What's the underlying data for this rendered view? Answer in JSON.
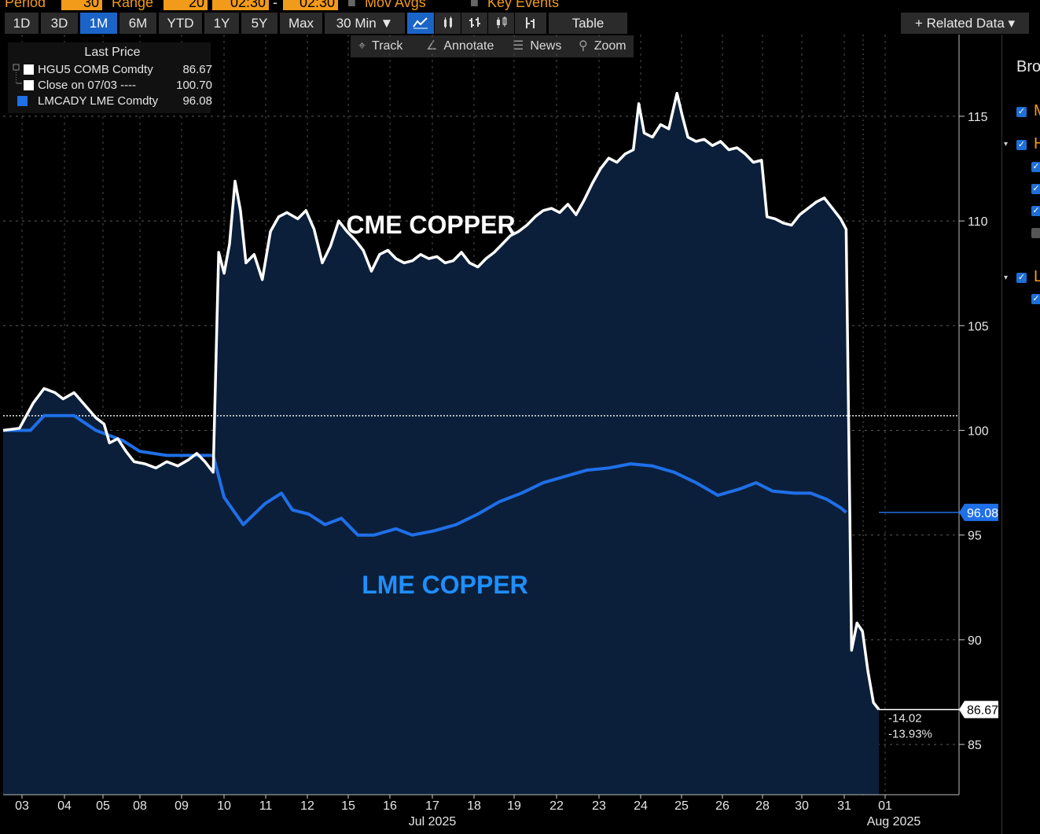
{
  "top_bar": {
    "period_label": "Period",
    "period_value": "30",
    "range_label": "Range",
    "range_value": "20",
    "start_time": "02:30",
    "separator": "-",
    "end_time": "02:30",
    "mov_avgs_label": "Mov Avgs",
    "key_events_label": "Key Events"
  },
  "toolbar": {
    "periods": [
      "1D",
      "3D",
      "1M",
      "6M",
      "YTD",
      "1Y",
      "5Y",
      "Max"
    ],
    "active_period": "1M",
    "interval_label": "30 Min ▼",
    "table_label": "Table",
    "related_data_label": "+ Related Data ▾",
    "chart_type_icons": [
      "line-chart-icon",
      "bar-chart-icon",
      "ohlc-icon",
      "candlestick-icon",
      "hlc-icon"
    ]
  },
  "sub_toolbar": {
    "track_label": "Track",
    "annotate_label": "Annotate",
    "news_label": "News",
    "zoom_label": "Zoom"
  },
  "legend": {
    "header": "Last Price",
    "rows": [
      {
        "name": "HGU5 COMB Comdty",
        "value": "86.67",
        "color": "#ffffff"
      },
      {
        "name": "Close on 07/03 ----",
        "value": "100.70",
        "color": "#ffffff"
      },
      {
        "name": "LMCADY LME Comdty",
        "value": "96.08",
        "color": "#1f6fe8"
      }
    ]
  },
  "side_panel": {
    "title_fragment": "Bro"
  },
  "chart_data": {
    "type": "line",
    "y_axis": {
      "ticks": [
        85,
        90,
        95,
        100,
        105,
        110,
        115
      ],
      "range": [
        82.6,
        118.9
      ],
      "position": "right"
    },
    "x_axis": {
      "tick_labels": [
        "03",
        "04",
        "05",
        "08",
        "09",
        "10",
        "11",
        "12",
        "15",
        "16",
        "17",
        "18",
        "19",
        "22",
        "23",
        "24",
        "25",
        "26",
        "28",
        "30",
        "31",
        "01"
      ],
      "month_labels": [
        "Jul 2025",
        "Aug 2025"
      ]
    },
    "grid": true,
    "reference_line": {
      "label": "Close on 07/03",
      "value": 100.7
    },
    "last_value_tags": [
      {
        "series": "CME COPPER",
        "value": "86.67"
      },
      {
        "series": "LME COPPER",
        "value": "96.08"
      }
    ],
    "change_annotation": {
      "abs": "-14.02",
      "pct": "-13.93%"
    },
    "series": [
      {
        "name": "CME COPPER",
        "ticker": "HGU5 COMB Comdty",
        "color": "#ffffff",
        "fill": "#0b1f3a",
        "points": [
          [
            0,
            100.0
          ],
          [
            0.3,
            100.1
          ],
          [
            0.55,
            101.3
          ],
          [
            0.75,
            102.0
          ],
          [
            0.95,
            101.8
          ],
          [
            1.1,
            101.5
          ],
          [
            1.3,
            101.8
          ],
          [
            1.5,
            101.2
          ],
          [
            1.7,
            100.6
          ],
          [
            1.85,
            100.3
          ],
          [
            1.95,
            99.4
          ],
          [
            2.1,
            99.6
          ],
          [
            2.25,
            99.0
          ],
          [
            2.4,
            98.5
          ],
          [
            2.6,
            98.4
          ],
          [
            2.8,
            98.2
          ],
          [
            3.0,
            98.5
          ],
          [
            3.2,
            98.3
          ],
          [
            3.4,
            98.6
          ],
          [
            3.55,
            98.9
          ],
          [
            3.7,
            98.5
          ],
          [
            3.85,
            98.0
          ],
          [
            3.95,
            108.5
          ],
          [
            4.05,
            107.5
          ],
          [
            4.15,
            108.9
          ],
          [
            4.25,
            111.9
          ],
          [
            4.35,
            110.5
          ],
          [
            4.45,
            108.0
          ],
          [
            4.6,
            108.4
          ],
          [
            4.75,
            107.2
          ],
          [
            4.9,
            109.5
          ],
          [
            5.05,
            110.2
          ],
          [
            5.2,
            110.4
          ],
          [
            5.4,
            110.1
          ],
          [
            5.55,
            110.5
          ],
          [
            5.7,
            109.6
          ],
          [
            5.85,
            108.0
          ],
          [
            6.0,
            108.8
          ],
          [
            6.15,
            110.0
          ],
          [
            6.3,
            109.5
          ],
          [
            6.45,
            109.1
          ],
          [
            6.6,
            108.6
          ],
          [
            6.75,
            107.6
          ],
          [
            6.9,
            108.4
          ],
          [
            7.05,
            108.6
          ],
          [
            7.2,
            108.2
          ],
          [
            7.35,
            108.0
          ],
          [
            7.5,
            108.1
          ],
          [
            7.65,
            108.4
          ],
          [
            7.8,
            108.2
          ],
          [
            7.95,
            108.3
          ],
          [
            8.1,
            108.0
          ],
          [
            8.25,
            108.1
          ],
          [
            8.4,
            108.5
          ],
          [
            8.55,
            108.0
          ],
          [
            8.7,
            107.8
          ],
          [
            8.85,
            108.2
          ],
          [
            9.0,
            108.5
          ],
          [
            9.15,
            108.9
          ],
          [
            9.3,
            109.3
          ],
          [
            9.45,
            109.5
          ],
          [
            9.6,
            109.8
          ],
          [
            9.75,
            110.2
          ],
          [
            9.9,
            110.5
          ],
          [
            10.05,
            110.6
          ],
          [
            10.2,
            110.4
          ],
          [
            10.35,
            110.8
          ],
          [
            10.5,
            110.3
          ],
          [
            10.65,
            111.0
          ],
          [
            10.8,
            111.8
          ],
          [
            10.95,
            112.5
          ],
          [
            11.1,
            113.0
          ],
          [
            11.25,
            112.8
          ],
          [
            11.4,
            113.2
          ],
          [
            11.55,
            113.4
          ],
          [
            11.65,
            115.6
          ],
          [
            11.75,
            114.2
          ],
          [
            11.9,
            114.0
          ],
          [
            12.05,
            114.6
          ],
          [
            12.2,
            114.4
          ],
          [
            12.35,
            116.1
          ],
          [
            12.45,
            115.0
          ],
          [
            12.55,
            114.0
          ],
          [
            12.7,
            113.8
          ],
          [
            12.85,
            113.9
          ],
          [
            13.0,
            113.6
          ],
          [
            13.15,
            113.8
          ],
          [
            13.3,
            113.4
          ],
          [
            13.45,
            113.5
          ],
          [
            13.6,
            113.2
          ],
          [
            13.75,
            112.8
          ],
          [
            13.9,
            112.9
          ],
          [
            14.0,
            110.2
          ],
          [
            14.15,
            110.1
          ],
          [
            14.3,
            109.9
          ],
          [
            14.45,
            109.8
          ],
          [
            14.6,
            110.3
          ],
          [
            14.75,
            110.6
          ],
          [
            14.9,
            110.9
          ],
          [
            15.05,
            111.1
          ],
          [
            15.2,
            110.6
          ],
          [
            15.35,
            110.1
          ],
          [
            15.45,
            109.6
          ],
          [
            15.55,
            89.5
          ],
          [
            15.65,
            90.8
          ],
          [
            15.75,
            90.4
          ],
          [
            15.85,
            88.5
          ],
          [
            15.95,
            87.0
          ],
          [
            16.05,
            86.67
          ]
        ]
      },
      {
        "name": "LME COPPER",
        "ticker": "LMCADY LME Comdty",
        "color": "#1f6fe8",
        "points": [
          [
            0,
            100.0
          ],
          [
            0.5,
            100.0
          ],
          [
            0.75,
            100.7
          ],
          [
            1.0,
            100.7
          ],
          [
            1.3,
            100.7
          ],
          [
            1.7,
            100.0
          ],
          [
            2.2,
            99.5
          ],
          [
            2.5,
            99.0
          ],
          [
            3.0,
            98.8
          ],
          [
            3.85,
            98.8
          ],
          [
            4.05,
            96.8
          ],
          [
            4.4,
            95.5
          ],
          [
            4.8,
            96.5
          ],
          [
            5.1,
            97.0
          ],
          [
            5.3,
            96.2
          ],
          [
            5.6,
            96.0
          ],
          [
            5.9,
            95.5
          ],
          [
            6.2,
            95.8
          ],
          [
            6.5,
            95.0
          ],
          [
            6.8,
            95.0
          ],
          [
            7.2,
            95.3
          ],
          [
            7.5,
            95.0
          ],
          [
            7.9,
            95.2
          ],
          [
            8.3,
            95.5
          ],
          [
            8.7,
            96.0
          ],
          [
            9.1,
            96.6
          ],
          [
            9.5,
            97.0
          ],
          [
            9.9,
            97.5
          ],
          [
            10.3,
            97.8
          ],
          [
            10.7,
            98.1
          ],
          [
            11.1,
            98.2
          ],
          [
            11.5,
            98.4
          ],
          [
            11.9,
            98.3
          ],
          [
            12.3,
            98.0
          ],
          [
            12.7,
            97.5
          ],
          [
            13.1,
            96.9
          ],
          [
            13.5,
            97.2
          ],
          [
            13.8,
            97.5
          ],
          [
            14.1,
            97.1
          ],
          [
            14.5,
            97.0
          ],
          [
            14.8,
            97.0
          ],
          [
            15.1,
            96.7
          ],
          [
            15.35,
            96.3
          ],
          [
            15.45,
            96.08
          ]
        ]
      }
    ],
    "annotations": [
      {
        "text": "CME COPPER",
        "color": "#ffffff"
      },
      {
        "text": "LME COPPER",
        "color": "#1f8fff"
      }
    ]
  }
}
